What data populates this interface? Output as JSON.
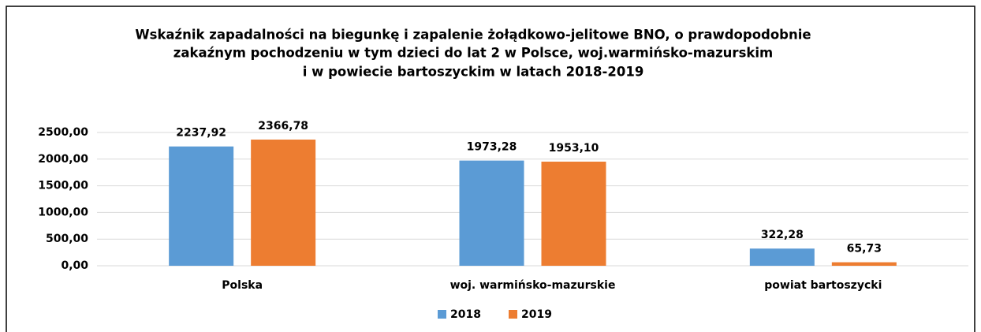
{
  "chart_data": {
    "type": "bar",
    "title": [
      "Wskaźnik zapadalności  na biegunkę i zapalenie żołądkowo-jelitowe BNO, o prawdopodobnie",
      "zakaźnym pochodzeniu w tym dzieci do lat 2 w Polsce, woj.warmińsko-mazurskim",
      "i w powiecie bartoszyckim w latach 2018-2019"
    ],
    "categories": [
      "Polska",
      "woj. warmińsko-mazurskie",
      "powiat bartoszycki"
    ],
    "series": [
      {
        "name": "2018",
        "color": "#5b9bd5",
        "values": [
          2237.92,
          1973.28,
          322.28
        ],
        "value_labels": [
          "2237,92",
          "1973,28",
          "322,28"
        ]
      },
      {
        "name": "2019",
        "color": "#ed7d31",
        "values": [
          2366.78,
          1953.1,
          65.73
        ],
        "value_labels": [
          "2366,78",
          "1953,10",
          "65,73"
        ]
      }
    ],
    "ylim": [
      0,
      2500
    ],
    "yticks": [
      {
        "value": 0,
        "label": "0,00"
      },
      {
        "value": 500,
        "label": "500,00"
      },
      {
        "value": 1000,
        "label": "1000,00"
      },
      {
        "value": 1500,
        "label": "1500,00"
      },
      {
        "value": 2000,
        "label": "2000,00"
      },
      {
        "value": 2500,
        "label": "2500,00"
      }
    ],
    "grid": true,
    "legend": "bottom"
  }
}
